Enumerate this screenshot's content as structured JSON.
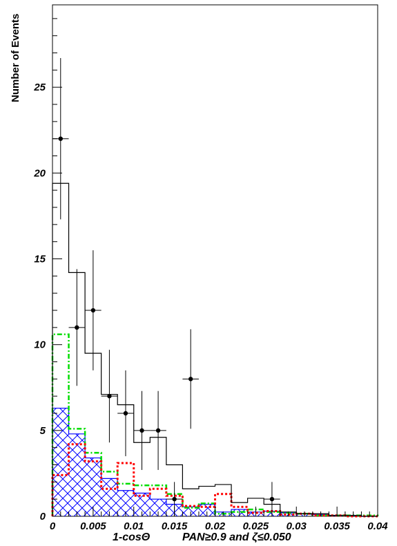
{
  "chart_data": {
    "type": "histogram",
    "xlabel": "1-cosΘ",
    "ylabel": "Number of Events",
    "annotation": "PAN≥0.9 and  ζ≤0.050",
    "xlim": [
      0,
      0.04
    ],
    "ylim": [
      0,
      29.8
    ],
    "grid": false,
    "x_ticks": {
      "values": [
        0,
        0.005,
        0.01,
        0.015,
        0.02,
        0.025,
        0.03,
        0.035,
        0.04
      ],
      "labels": [
        "0",
        "0.005",
        "0.01",
        "0.015",
        "0.02",
        "0.025",
        "0.03",
        "0.035",
        "0.04"
      ]
    },
    "y_ticks": {
      "values": [
        0,
        5,
        10,
        15,
        20,
        25
      ],
      "labels": [
        "0",
        "5",
        "10",
        "15",
        "20",
        "25"
      ]
    },
    "bin_edges": [
      0,
      0.002,
      0.004,
      0.006,
      0.008,
      0.01,
      0.012,
      0.014,
      0.016,
      0.018,
      0.02,
      0.022,
      0.024,
      0.026,
      0.028,
      0.03,
      0.032,
      0.034,
      0.036,
      0.038,
      0.04
    ],
    "series": [
      {
        "style": "hatched-blue",
        "color": "#0000ff",
        "values": [
          6.3,
          4.8,
          3.4,
          2.2,
          1.5,
          1.35,
          1.0,
          0.7,
          0.55,
          0.7,
          0.25,
          0.4,
          0.25,
          0.3,
          0.2,
          0.15,
          0.1,
          0.05,
          0.05,
          0.0
        ]
      },
      {
        "style": "dash-dot-green",
        "color": "#00dd00",
        "values": [
          10.6,
          5.1,
          3.7,
          2.6,
          1.9,
          1.8,
          1.8,
          1.3,
          0.5,
          0.75,
          0.15,
          0.25,
          0.4,
          0.25,
          0.2,
          0.15,
          0.05,
          0.05,
          0.05,
          0.05
        ]
      },
      {
        "style": "dotted-red",
        "color": "#ff0000",
        "values": [
          2.4,
          4.2,
          3.2,
          1.6,
          3.1,
          1.2,
          1.6,
          1.2,
          0.6,
          0.55,
          1.3,
          0.55,
          0.2,
          0.3,
          0.1,
          0.15,
          0.05,
          0.05,
          0.0,
          0.0
        ]
      },
      {
        "style": "solid-black",
        "color": "#000000",
        "values": [
          19.4,
          14.2,
          9.5,
          7.1,
          6.5,
          4.3,
          4.6,
          3.0,
          1.6,
          1.75,
          1.85,
          0.8,
          1.05,
          0.7,
          0.25,
          0.15,
          0.15,
          0.05,
          0.05,
          0.0
        ]
      }
    ],
    "data_points": {
      "color": "#000000",
      "x": [
        0.001,
        0.003,
        0.005,
        0.007,
        0.009,
        0.011,
        0.013,
        0.015,
        0.017,
        0.027
      ],
      "y": [
        22,
        11,
        12,
        7,
        6,
        5,
        5,
        1,
        8,
        1
      ],
      "yerr_low": [
        4.7,
        3.4,
        3.5,
        2.7,
        2.5,
        2.3,
        2.3,
        1.0,
        2.9,
        1.0
      ],
      "yerr_high": [
        4.7,
        3.4,
        3.5,
        2.7,
        2.5,
        2.3,
        2.3,
        1.0,
        2.9,
        1.0
      ]
    }
  }
}
